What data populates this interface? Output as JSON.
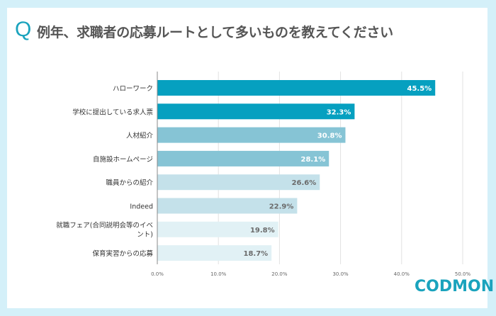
{
  "title": {
    "q": "Q",
    "text": "例年、求職者の応募ルートとして多いものを教えてください"
  },
  "logo": "CODMON",
  "chart_data": {
    "type": "bar",
    "orientation": "horizontal",
    "categories": [
      "ハローワーク",
      "学校に提出している求人票",
      "人材紹介",
      "自施設ホームページ",
      "職員からの紹介",
      "Indeed",
      "就職フェア(合同説明会等のイベント)",
      "保育実習からの応募"
    ],
    "values": [
      45.5,
      32.3,
      30.8,
      28.1,
      26.6,
      22.9,
      19.8,
      18.7
    ],
    "value_labels": [
      "45.5%",
      "32.3%",
      "30.8%",
      "28.1%",
      "26.6%",
      "22.9%",
      "19.8%",
      "18.7%"
    ],
    "bar_colors": [
      "#06a0c0",
      "#06a0c0",
      "#86c4d5",
      "#86c4d5",
      "#c4e1ea",
      "#c4e1ea",
      "#e1f1f5",
      "#e1f1f5"
    ],
    "label_colors": [
      "#ffffff",
      "#ffffff",
      "#ffffff",
      "#ffffff",
      "#6b6b6b",
      "#6b6b6b",
      "#6b6b6b",
      "#6b6b6b"
    ],
    "xlim": [
      0,
      50
    ],
    "xticks": [
      0,
      10,
      20,
      30,
      40,
      50
    ],
    "xtick_labels": [
      "0.0%",
      "10.0%",
      "20.0%",
      "30.0%",
      "40.0%",
      "50.0%"
    ],
    "grid": true
  }
}
